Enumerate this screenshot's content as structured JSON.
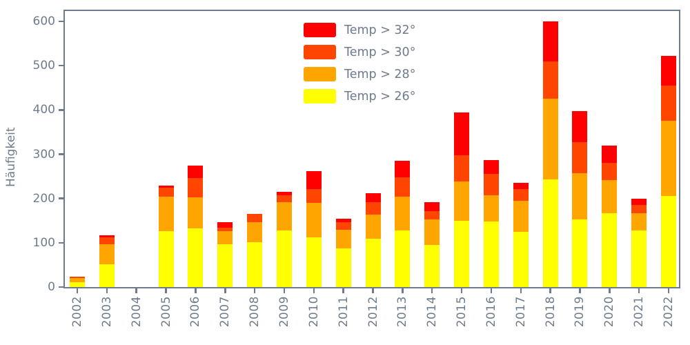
{
  "figure": {
    "background_color": "#ffffff",
    "text_color": "#6e7b8b",
    "spine_color": "#6e7b8b"
  },
  "axes": {
    "ylabel": "Häufigkeit",
    "xlabel": "",
    "y_ticks": [
      0,
      100,
      200,
      300,
      400,
      500,
      600
    ],
    "x_tick_labels_rotated_degrees": 90
  },
  "chart_data": {
    "type": "bar",
    "stacked": true,
    "title": "",
    "xlabel": "",
    "ylabel": "Häufigkeit",
    "ylim": [
      0,
      630
    ],
    "grid": false,
    "legend_position": "upper center",
    "legend_frame": false,
    "categories": [
      "2002",
      "2003",
      "2004",
      "2005",
      "2006",
      "2007",
      "2008",
      "2009",
      "2010",
      "2011",
      "2012",
      "2013",
      "2014",
      "2015",
      "2016",
      "2017",
      "2018",
      "2019",
      "2020",
      "2021",
      "2022"
    ],
    "stack_order_bottom_to_top": [
      "Temp > 26°",
      "Temp > 28°",
      "Temp > 30°",
      "Temp > 32°"
    ],
    "series": [
      {
        "name": "Temp > 32°",
        "color": "#ff0000",
        "values": [
          0,
          5,
          0,
          5,
          28,
          13,
          0,
          8,
          41,
          8,
          20,
          38,
          20,
          97,
          30,
          13,
          91,
          71,
          39,
          15,
          67
        ]
      },
      {
        "name": "Temp > 30°",
        "color": "#ff4500",
        "values": [
          3,
          16,
          0,
          20,
          45,
          7,
          19,
          16,
          31,
          18,
          29,
          44,
          20,
          59,
          48,
          27,
          84,
          70,
          39,
          18,
          80
        ]
      },
      {
        "name": "Temp > 28°",
        "color": "#ffa500",
        "values": [
          9,
          44,
          0,
          77,
          70,
          30,
          45,
          63,
          78,
          41,
          54,
          76,
          57,
          90,
          60,
          70,
          182,
          104,
          75,
          39,
          169
        ]
      },
      {
        "name": "Temp > 26°",
        "color": "#ffff00",
        "values": [
          11,
          52,
          0,
          127,
          132,
          97,
          102,
          128,
          112,
          88,
          109,
          128,
          95,
          149,
          148,
          125,
          243,
          153,
          167,
          128,
          206
        ]
      }
    ],
    "totals": [
      23,
      117,
      0,
      229,
      275,
      147,
      166,
      215,
      262,
      155,
      212,
      286,
      192,
      395,
      286,
      235,
      600,
      398,
      320,
      200,
      522
    ]
  }
}
